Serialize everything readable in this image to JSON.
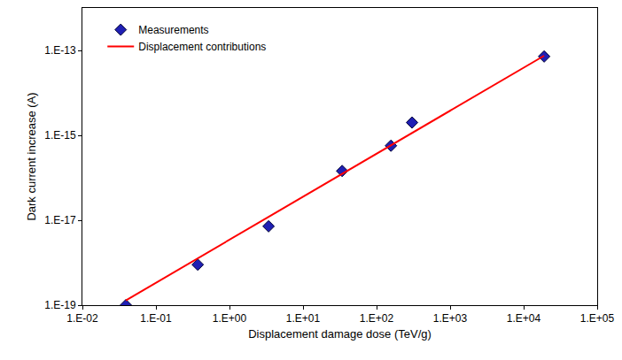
{
  "chart_data": {
    "type": "scatter",
    "x_label": "Displacement damage dose (TeV/g)",
    "y_label": "Dark current increase (A)",
    "log": true,
    "grid": false,
    "legend": "upper left",
    "xlim": [
      0.01,
      100000
    ],
    "xticks": [
      {
        "value": 0.01,
        "label": "1.E-02"
      },
      {
        "value": 0.1,
        "label": "1.E-01"
      },
      {
        "value": 1,
        "label": "1.E+00"
      },
      {
        "value": 10,
        "label": "1.E+01"
      },
      {
        "value": 100,
        "label": "1.E+02"
      },
      {
        "value": 1000,
        "label": "1.E+03"
      },
      {
        "value": 10000,
        "label": "1.E+04"
      },
      {
        "value": 100000,
        "label": "1.E+05"
      }
    ],
    "ylim": [
      1e-19,
      1e-12
    ],
    "yticks": [
      {
        "value": 1e-19,
        "label": "1.E-19"
      },
      {
        "value": 1e-17,
        "label": "1.E-17"
      },
      {
        "value": 1e-15,
        "label": "1.E-15"
      },
      {
        "value": 1e-13,
        "label": "1.E-13"
      }
    ],
    "series": [
      {
        "name": "Measurements",
        "type": "scatter",
        "marker": "diamond",
        "color": "#1f1fb4",
        "x": [
          0.039,
          0.37,
          3.4,
          34,
          157,
          304,
          19000
        ],
        "values": [
          1e-19,
          9e-19,
          7.2e-18,
          1.45e-16,
          5.7e-16,
          2e-15,
          7.2e-14
        ]
      },
      {
        "name": "Displacement contributions",
        "type": "line",
        "line_style": "solid",
        "color": "#ff0000",
        "x": [
          0.039,
          19000
        ],
        "values": [
          1.3e-19,
          7.5e-14
        ]
      }
    ]
  }
}
